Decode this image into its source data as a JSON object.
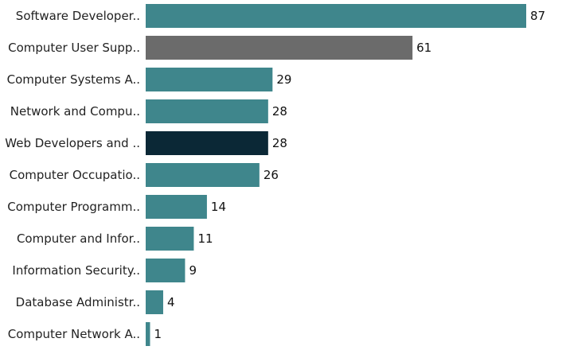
{
  "chart_data": {
    "type": "bar",
    "orientation": "horizontal",
    "title": "",
    "xlabel": "",
    "ylabel": "",
    "categories": [
      "Software Developer..",
      "Computer User Supp..",
      "Computer Systems A..",
      "Network and Compu..",
      "Web Developers and ..",
      "Computer Occupatio..",
      "Computer Programm..",
      "Computer and Infor..",
      "Information Security..",
      "Database Administr..",
      "Computer Network A.."
    ],
    "values": [
      87,
      61,
      29,
      28,
      28,
      26,
      14,
      11,
      9,
      4,
      1
    ],
    "colors": [
      "#3f868c",
      "#6b6b6b",
      "#3f868c",
      "#3f868c",
      "#0b2836",
      "#3f868c",
      "#3f868c",
      "#3f868c",
      "#3f868c",
      "#3f868c",
      "#3f868c"
    ],
    "xlim": [
      0,
      87
    ],
    "grid": false,
    "legend": "none"
  }
}
